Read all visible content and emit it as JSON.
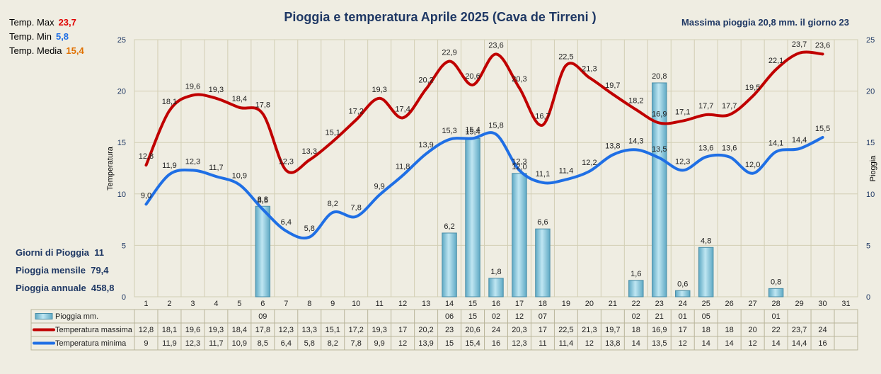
{
  "chart_data": {
    "type": "bar+line",
    "title": "Pioggia e temperatura Aprile 2025 (Cava de Tirreni )",
    "ylabel_left": "Temperatura",
    "ylabel_right": "Pioggia",
    "ylim": [
      0,
      25
    ],
    "yticks": [
      0,
      5,
      10,
      15,
      20,
      25
    ],
    "days": [
      "1",
      "2",
      "3",
      "4",
      "5",
      "6",
      "7",
      "8",
      "9",
      "10",
      "11",
      "12",
      "13",
      "14",
      "15",
      "16",
      "17",
      "18",
      "19",
      "20",
      "21",
      "22",
      "23",
      "24",
      "25",
      "26",
      "27",
      "28",
      "29",
      "30",
      "31"
    ],
    "rain": [
      null,
      null,
      null,
      null,
      null,
      8.8,
      null,
      null,
      null,
      null,
      null,
      null,
      null,
      6.2,
      15.4,
      1.8,
      12.0,
      6.6,
      null,
      null,
      null,
      1.6,
      20.8,
      0.6,
      4.8,
      null,
      null,
      0.8,
      null,
      null,
      null
    ],
    "rain_labels": [
      "",
      "",
      "",
      "",
      "",
      "8,8",
      "",
      "",
      "",
      "",
      "",
      "",
      "",
      "6,2",
      "15,4",
      "1,8",
      "12,0",
      "6,6",
      "",
      "",
      "",
      "1,6",
      "20,8",
      "0,6",
      "4,8",
      "",
      "",
      "0,8",
      "",
      "",
      ""
    ],
    "tmax": [
      12.8,
      18.1,
      19.6,
      19.3,
      18.4,
      17.8,
      12.3,
      13.3,
      15.1,
      17.2,
      19.3,
      17.4,
      20.2,
      22.9,
      20.6,
      23.6,
      20.3,
      16.7,
      22.5,
      21.3,
      19.7,
      18.2,
      16.9,
      17.1,
      17.7,
      17.7,
      19.5,
      22.1,
      23.7,
      23.6,
      null
    ],
    "tmax_labels": [
      "12,8",
      "18,1",
      "19,6",
      "19,3",
      "18,4",
      "17,8",
      "12,3",
      "13,3",
      "15,1",
      "17,2",
      "19,3",
      "17,4",
      "20,2",
      "22,9",
      "20,6",
      "23,6",
      "20,3",
      "16,7",
      "22,5",
      "21,3",
      "19,7",
      "18,2",
      "16,9",
      "17,1",
      "17,7",
      "17,7",
      "19,5",
      "22,1",
      "23,7",
      "23,6",
      ""
    ],
    "tmin": [
      9.0,
      11.9,
      12.3,
      11.7,
      10.9,
      8.5,
      6.4,
      5.8,
      8.2,
      7.8,
      9.9,
      11.8,
      13.9,
      15.3,
      15.4,
      15.8,
      12.3,
      11.1,
      11.4,
      12.2,
      13.8,
      14.3,
      13.5,
      12.3,
      13.6,
      13.6,
      12.0,
      14.1,
      14.4,
      15.5,
      null
    ],
    "tmin_labels": [
      "9,0",
      "11,9",
      "12,3",
      "11,7",
      "10,9",
      "8,5",
      "6,4",
      "5,8",
      "8,2",
      "7,8",
      "9,9",
      "11,8",
      "13,9",
      "15,3",
      "15,4",
      "15,8",
      "12,3",
      "11,1",
      "11,4",
      "12,2",
      "13,8",
      "14,3",
      "13,5",
      "12,3",
      "13,6",
      "13,6",
      "12,0",
      "14,1",
      "14,4",
      "15,5",
      ""
    ],
    "table": {
      "rows": [
        {
          "name": "Pioggia mm.",
          "values": [
            "",
            "",
            "",
            "",
            "",
            "09",
            "",
            "",
            "",
            "",
            "",
            "",
            "",
            "06",
            "15",
            "02",
            "12",
            "07",
            "",
            "",
            "",
            "02",
            "21",
            "01",
            "05",
            "",
            "",
            "01",
            "",
            "",
            ""
          ]
        },
        {
          "name": "Temperatura massima",
          "values": [
            "12,8",
            "18,1",
            "19,6",
            "19,3",
            "18,4",
            "17,8",
            "12,3",
            "13,3",
            "15,1",
            "17,2",
            "19,3",
            "17",
            "20,2",
            "23",
            "20,6",
            "24",
            "20,3",
            "17",
            "22,5",
            "21,3",
            "19,7",
            "18",
            "16,9",
            "17",
            "18",
            "18",
            "20",
            "22",
            "23,7",
            "24",
            ""
          ]
        },
        {
          "name": "Temperatura minima",
          "values": [
            "9",
            "11,9",
            "12,3",
            "11,7",
            "10,9",
            "8,5",
            "6,4",
            "5,8",
            "8,2",
            "7,8",
            "9,9",
            "12",
            "13,9",
            "15",
            "15,4",
            "16",
            "12,3",
            "11",
            "11,4",
            "12",
            "13,8",
            "14",
            "13,5",
            "12",
            "14",
            "14",
            "12",
            "14",
            "14,4",
            "16",
            ""
          ]
        }
      ]
    },
    "colors": {
      "rain": "#7ec8dc",
      "tmax": "#c00000",
      "tmin": "#1f6fe5",
      "background": "#efede2",
      "title": "#1f3864"
    }
  },
  "stats": {
    "tmax_label": "Temp. Max",
    "tmax_value": "23,7",
    "tmin_label": "Temp. Min",
    "tmin_value": "5,8",
    "tmed_label": "Temp. Media",
    "tmed_value": "15,4"
  },
  "max_rain_note": "Massima pioggia  20,8 mm. il giorno 23",
  "rain_summary": {
    "days_label": "Giorni di Pioggia",
    "days_value": "11",
    "monthly_label": "Pioggia mensile",
    "monthly_value": "79,4",
    "annual_label": "Pioggia annuale",
    "annual_value": "458,8"
  }
}
